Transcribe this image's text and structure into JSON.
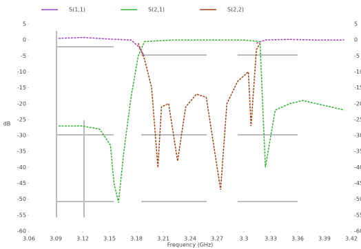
{
  "chart_data": {
    "type": "line",
    "xlabel": "Frequency (GHz)",
    "ylabel": "dB",
    "xlim": [
      3.06,
      3.42
    ],
    "xticks": [
      {
        "value": 3.06,
        "label": "3.06"
      },
      {
        "value": 3.09,
        "label": "3.09"
      },
      {
        "value": 3.12,
        "label": "3.12"
      },
      {
        "value": 3.15,
        "label": "3.15"
      },
      {
        "value": 3.18,
        "label": "3.18"
      },
      {
        "value": 3.21,
        "label": "3.21"
      },
      {
        "value": 3.24,
        "label": "3.24"
      },
      {
        "value": 3.27,
        "label": "3.27"
      },
      3.3,
      {
        "value": 3.33,
        "label": "3.33"
      },
      {
        "value": 3.36,
        "label": "3.36"
      },
      {
        "value": 3.39,
        "label": "3.39"
      },
      {
        "value": 3.42,
        "label": "3.42"
      }
    ],
    "ylim": [
      -60,
      5
    ],
    "yticks": [
      5,
      0,
      -5,
      -10,
      -15,
      -20,
      -25,
      -30,
      -35,
      -40,
      -45,
      -50,
      -55,
      -60
    ],
    "series": [
      {
        "name": "S(1,1)",
        "color": "#a040c0",
        "x": [
          3.093,
          3.12,
          3.15,
          3.174,
          3.182,
          3.189,
          3.305,
          3.314,
          3.324,
          3.35,
          3.38,
          3.412
        ],
        "values": [
          0.5,
          0.8,
          0.3,
          0,
          -2,
          -5,
          null,
          -1,
          0,
          0.2,
          0,
          0
        ]
      },
      {
        "name": "S(2,1)",
        "color": "#30b030",
        "x": [
          3.093,
          3.12,
          3.139,
          3.151,
          3.155,
          3.16,
          3.166,
          3.174,
          3.182,
          3.189,
          3.22,
          3.26,
          3.3,
          3.318,
          3.324,
          3.335,
          3.351,
          3.366,
          3.381,
          3.397,
          3.412
        ],
        "values": [
          -27,
          -27,
          -28,
          -33,
          -45,
          -51,
          -35,
          -18,
          -5,
          -0.5,
          0,
          0,
          0,
          -0.5,
          -40,
          -22,
          -20,
          -19,
          -20,
          -21,
          -22
        ]
      },
      {
        "name": "S(2,2)",
        "color": "#a04010",
        "x": [
          3.182,
          3.189,
          3.197,
          3.204,
          3.208,
          3.216,
          3.226,
          3.235,
          3.247,
          3.258,
          3.274,
          3.281,
          3.293,
          3.305,
          3.308,
          3.314,
          3.318
        ],
        "values": [
          -1,
          -6,
          -15,
          -40,
          -21,
          -20,
          -38,
          -21,
          -17,
          -18,
          -47,
          -20,
          -13,
          -10,
          -27,
          -3,
          -1
        ]
      }
    ]
  }
}
